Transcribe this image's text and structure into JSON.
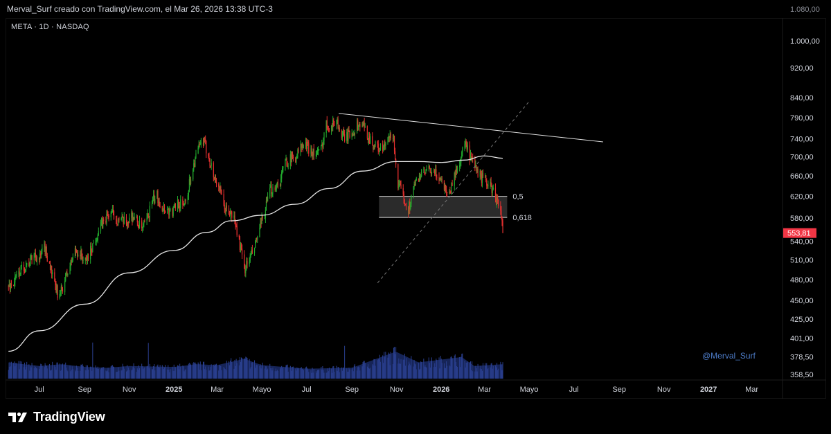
{
  "header": {
    "attribution": "Merval_Surf creado con TradingView.com, el Mar 26, 2026 13:38 UTC-3"
  },
  "symbol_label": "META · 1D · NASDAQ",
  "watermark": "@Merval_Surf",
  "footer": {
    "brand": "TradingView"
  },
  "colors": {
    "up": "#22ab2d",
    "down": "#e5302f",
    "ma": "#e6e6e6",
    "volume": "#2a3f8f",
    "price_tag": "#f23645",
    "fib_band": "#3a3a3a"
  },
  "chart_data": {
    "type": "candlestick",
    "symbol": "META",
    "interval": "1D",
    "exchange": "NASDAQ",
    "y_scale": "log",
    "ylim": [
      358.5,
      1100
    ],
    "y_ticks": [
      "1.000,00",
      "920,00",
      "840,00",
      "790,00",
      "740,00",
      "700,00",
      "660,00",
      "620,00",
      "580,00",
      "540,00",
      "510,00",
      "480,00",
      "450,00",
      "425,00",
      "401,00",
      "378,50",
      "358,50"
    ],
    "y_tick_values": [
      1000,
      920,
      840,
      790,
      740,
      700,
      660,
      620,
      580,
      540,
      510,
      480,
      450,
      425,
      401,
      378.5,
      358.5
    ],
    "top_tick_partial": "1.080,00",
    "top_tick_value": 1080,
    "x_ticks": [
      {
        "label": "Jul",
        "date": "2024-07-01",
        "bold": false
      },
      {
        "label": "Sep",
        "date": "2024-09-01",
        "bold": false
      },
      {
        "label": "Nov",
        "date": "2024-11-01",
        "bold": false
      },
      {
        "label": "2025",
        "date": "2025-01-01",
        "bold": true
      },
      {
        "label": "Mar",
        "date": "2025-03-01",
        "bold": false
      },
      {
        "label": "Mayo",
        "date": "2025-05-01",
        "bold": false
      },
      {
        "label": "Jul",
        "date": "2025-07-01",
        "bold": false
      },
      {
        "label": "Sep",
        "date": "2025-09-01",
        "bold": false
      },
      {
        "label": "Nov",
        "date": "2025-11-01",
        "bold": false
      },
      {
        "label": "2026",
        "date": "2026-01-01",
        "bold": true
      },
      {
        "label": "Mar",
        "date": "2026-03-01",
        "bold": false
      },
      {
        "label": "Mayo",
        "date": "2026-05-01",
        "bold": false
      },
      {
        "label": "Jul",
        "date": "2026-07-01",
        "bold": false
      },
      {
        "label": "Sep",
        "date": "2026-09-01",
        "bold": false
      },
      {
        "label": "Nov",
        "date": "2026-11-01",
        "bold": false
      },
      {
        "label": "2027",
        "date": "2027-01-01",
        "bold": true
      },
      {
        "label": "Mar",
        "date": "2027-03-01",
        "bold": false
      }
    ],
    "last_price": 553.81,
    "last_price_label": "553,81",
    "price_path": [
      [
        "2024-05-20",
        470
      ],
      [
        "2024-05-27",
        475
      ],
      [
        "2024-06-03",
        490
      ],
      [
        "2024-06-10",
        500
      ],
      [
        "2024-06-17",
        505
      ],
      [
        "2024-06-24",
        520
      ],
      [
        "2024-07-01",
        510
      ],
      [
        "2024-07-08",
        530
      ],
      [
        "2024-07-15",
        505
      ],
      [
        "2024-07-22",
        470
      ],
      [
        "2024-07-29",
        455
      ],
      [
        "2024-08-05",
        480
      ],
      [
        "2024-08-12",
        500
      ],
      [
        "2024-08-19",
        525
      ],
      [
        "2024-08-26",
        520
      ],
      [
        "2024-09-02",
        505
      ],
      [
        "2024-09-09",
        525
      ],
      [
        "2024-09-16",
        545
      ],
      [
        "2024-09-23",
        565
      ],
      [
        "2024-09-30",
        580
      ],
      [
        "2024-10-07",
        590
      ],
      [
        "2024-10-14",
        580
      ],
      [
        "2024-10-21",
        575
      ],
      [
        "2024-10-28",
        570
      ],
      [
        "2024-11-04",
        585
      ],
      [
        "2024-11-11",
        575
      ],
      [
        "2024-11-18",
        560
      ],
      [
        "2024-11-25",
        575
      ],
      [
        "2024-12-02",
        610
      ],
      [
        "2024-12-09",
        620
      ],
      [
        "2024-12-16",
        600
      ],
      [
        "2024-12-23",
        595
      ],
      [
        "2024-12-30",
        590
      ],
      [
        "2025-01-06",
        610
      ],
      [
        "2025-01-13",
        600
      ],
      [
        "2025-01-20",
        630
      ],
      [
        "2025-01-27",
        680
      ],
      [
        "2025-02-03",
        715
      ],
      [
        "2025-02-10",
        735
      ],
      [
        "2025-02-17",
        705
      ],
      [
        "2025-02-24",
        660
      ],
      [
        "2025-03-03",
        640
      ],
      [
        "2025-03-10",
        600
      ],
      [
        "2025-03-17",
        590
      ],
      [
        "2025-03-24",
        580
      ],
      [
        "2025-03-31",
        540
      ],
      [
        "2025-04-07",
        495
      ],
      [
        "2025-04-14",
        510
      ],
      [
        "2025-04-21",
        530
      ],
      [
        "2025-04-28",
        560
      ],
      [
        "2025-05-05",
        590
      ],
      [
        "2025-05-12",
        630
      ],
      [
        "2025-05-19",
        640
      ],
      [
        "2025-05-26",
        650
      ],
      [
        "2025-06-02",
        690
      ],
      [
        "2025-06-09",
        695
      ],
      [
        "2025-06-16",
        700
      ],
      [
        "2025-06-23",
        720
      ],
      [
        "2025-06-30",
        725
      ],
      [
        "2025-07-07",
        715
      ],
      [
        "2025-07-14",
        705
      ],
      [
        "2025-07-21",
        715
      ],
      [
        "2025-07-28",
        775
      ],
      [
        "2025-08-04",
        770
      ],
      [
        "2025-08-11",
        785
      ],
      [
        "2025-08-18",
        745
      ],
      [
        "2025-08-25",
        745
      ],
      [
        "2025-09-01",
        755
      ],
      [
        "2025-09-08",
        770
      ],
      [
        "2025-09-15",
        775
      ],
      [
        "2025-09-22",
        750
      ],
      [
        "2025-09-29",
        730
      ],
      [
        "2025-10-06",
        720
      ],
      [
        "2025-10-13",
        715
      ],
      [
        "2025-10-20",
        735
      ],
      [
        "2025-10-27",
        750
      ],
      [
        "2025-11-03",
        640
      ],
      [
        "2025-11-10",
        620
      ],
      [
        "2025-11-17",
        595
      ],
      [
        "2025-11-24",
        635
      ],
      [
        "2025-12-01",
        660
      ],
      [
        "2025-12-08",
        665
      ],
      [
        "2025-12-15",
        670
      ],
      [
        "2025-12-22",
        665
      ],
      [
        "2025-12-29",
        660
      ],
      [
        "2026-01-05",
        640
      ],
      [
        "2026-01-12",
        625
      ],
      [
        "2026-01-19",
        660
      ],
      [
        "2026-01-26",
        690
      ],
      [
        "2026-02-02",
        730
      ],
      [
        "2026-02-09",
        700
      ],
      [
        "2026-02-16",
        675
      ],
      [
        "2026-02-23",
        660
      ],
      [
        "2026-03-02",
        650
      ],
      [
        "2026-03-09",
        640
      ],
      [
        "2026-03-16",
        620
      ],
      [
        "2026-03-23",
        595
      ],
      [
        "2026-03-26",
        553.81
      ]
    ],
    "moving_average": [
      [
        "2024-05-20",
        385
      ],
      [
        "2024-07-01",
        410
      ],
      [
        "2024-09-01",
        445
      ],
      [
        "2024-11-01",
        490
      ],
      [
        "2025-01-01",
        525
      ],
      [
        "2025-02-15",
        555
      ],
      [
        "2025-03-20",
        575
      ],
      [
        "2025-05-01",
        585
      ],
      [
        "2025-06-15",
        605
      ],
      [
        "2025-08-01",
        635
      ],
      [
        "2025-09-15",
        670
      ],
      [
        "2025-11-01",
        690
      ],
      [
        "2025-12-01",
        690
      ],
      [
        "2026-01-01",
        688
      ],
      [
        "2026-02-01",
        693
      ],
      [
        "2026-03-01",
        702
      ],
      [
        "2026-03-26",
        697
      ]
    ],
    "volume_path": [
      [
        "2024-05-20",
        18
      ],
      [
        "2024-07-01",
        14
      ],
      [
        "2024-08-01",
        16
      ],
      [
        "2024-09-01",
        13
      ],
      [
        "2024-10-01",
        12
      ],
      [
        "2024-11-01",
        14
      ],
      [
        "2025-01-01",
        13
      ],
      [
        "2025-02-01",
        16
      ],
      [
        "2025-03-01",
        15
      ],
      [
        "2025-04-07",
        22
      ],
      [
        "2025-05-01",
        15
      ],
      [
        "2025-07-01",
        11
      ],
      [
        "2025-09-01",
        12
      ],
      [
        "2025-10-31",
        30
      ],
      [
        "2025-12-01",
        18
      ],
      [
        "2026-01-29",
        24
      ],
      [
        "2026-02-15",
        14
      ],
      [
        "2026-03-26",
        16
      ]
    ],
    "trendlines": [
      {
        "kind": "resistance",
        "from": [
          "2025-08-14",
          800
        ],
        "to": [
          "2026-08-10",
          733
        ]
      },
      {
        "kind": "dashed-support",
        "from": [
          "2025-10-06",
          475
        ],
        "to": [
          "2026-05-01",
          830
        ]
      }
    ],
    "fib_levels": [
      {
        "label": "0,5",
        "value": 620,
        "from": "2025-10-08",
        "to": "2026-04-01"
      },
      {
        "label": "0,618",
        "value": 581,
        "from": "2025-10-08",
        "to": "2026-04-01"
      }
    ]
  }
}
